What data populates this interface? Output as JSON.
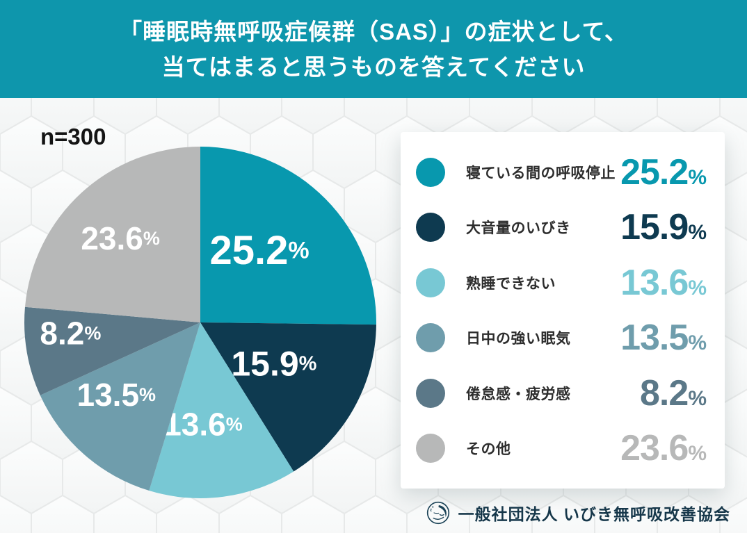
{
  "header": {
    "title_line1": "「睡眠時無呼吸症候群（SAS）」の症状として、",
    "title_line2": "当てはまると思うものを答えてください",
    "bg_color": "#0e96ac",
    "text_color": "#ffffff"
  },
  "sample_label": "n=300",
  "chart_data": {
    "type": "pie",
    "title": "「睡眠時無呼吸症候群（SAS）」の症状として、当てはまると思うものを答えてください",
    "sample_size": 300,
    "start_angle_deg": 0,
    "direction": "clockwise",
    "legend_position": "right",
    "unit": "%",
    "slices": [
      {
        "label": "寝ている間の呼吸停止",
        "value": 25.2,
        "color": "#0898ae"
      },
      {
        "label": "大音量のいびき",
        "value": 15.9,
        "color": "#0e3a50"
      },
      {
        "label": "熟睡できない",
        "value": 13.6,
        "color": "#78c8d4"
      },
      {
        "label": "日中の強い眠気",
        "value": 13.5,
        "color": "#6f9dac"
      },
      {
        "label": "倦怠感・疲労感",
        "value": 8.2,
        "color": "#5b7888"
      },
      {
        "label": "その他",
        "value": 23.6,
        "color": "#b7b8b8"
      }
    ]
  },
  "footer": {
    "org_name": "一般社団法人 いびき無呼吸改善協会",
    "text_color": "#16374a"
  }
}
